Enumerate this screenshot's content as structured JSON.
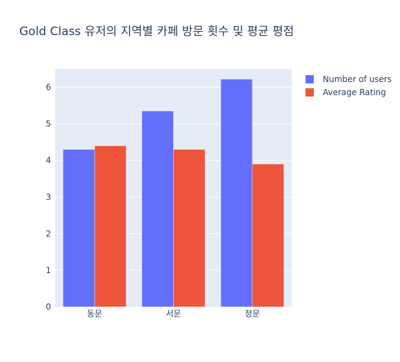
{
  "chart_data": {
    "type": "bar",
    "title": "Gold Class 유저의 지역별 카페 방문 횟수 및 평균 평점",
    "categories": [
      "동문",
      "서문",
      "정문"
    ],
    "series": [
      {
        "name": "Number of users",
        "values": [
          4.3,
          5.35,
          6.22
        ],
        "color": "#636efa"
      },
      {
        "name": "Average Rating",
        "values": [
          4.4,
          4.3,
          3.9
        ],
        "color": "#ef553b"
      }
    ],
    "xlabel": "",
    "ylabel": "",
    "ylim": [
      0,
      6.5
    ],
    "yticks": [
      0,
      1,
      2,
      3,
      4,
      5,
      6
    ],
    "grid": true,
    "legend": "top-right",
    "plot_background": "#e5ecf6"
  }
}
